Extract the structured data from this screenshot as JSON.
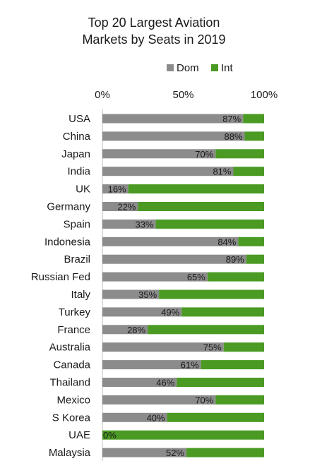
{
  "chart_data": {
    "type": "bar",
    "orientation": "horizontal",
    "stacked": true,
    "percent_stacked": true,
    "title": [
      "Top 20 Largest Aviation",
      "Markets by Seats in 2019"
    ],
    "xlim": [
      0,
      100
    ],
    "x_ticks": [
      "0%",
      "50%",
      "100%"
    ],
    "x_axis_position": "top",
    "grid": false,
    "legend_position": "top-right",
    "categories": [
      "USA",
      "China",
      "Japan",
      "India",
      "UK",
      "Germany",
      "Spain",
      "Indonesia",
      "Brazil",
      "Russian Fed",
      "Italy",
      "Turkey",
      "France",
      "Australia",
      "Canada",
      "Thailand",
      "Mexico",
      "S Korea",
      "UAE",
      "Malaysia"
    ],
    "series": [
      {
        "name": "Dom",
        "color": "#8c8c8c",
        "values": [
          87,
          88,
          70,
          81,
          16,
          22,
          33,
          84,
          89,
          65,
          35,
          49,
          28,
          75,
          61,
          46,
          70,
          40,
          0,
          52
        ]
      },
      {
        "name": "Int",
        "color": "#4a9a23",
        "values": [
          13,
          12,
          30,
          19,
          84,
          78,
          67,
          16,
          11,
          35,
          65,
          51,
          72,
          25,
          39,
          54,
          30,
          60,
          100,
          48
        ]
      }
    ],
    "data_labels": [
      "87%",
      "88%",
      "70%",
      "81%",
      "16%",
      "22%",
      "33%",
      "84%",
      "89%",
      "65%",
      "35%",
      "49%",
      "28%",
      "75%",
      "61%",
      "46%",
      "70%",
      "40%",
      "0%",
      "52%"
    ]
  }
}
